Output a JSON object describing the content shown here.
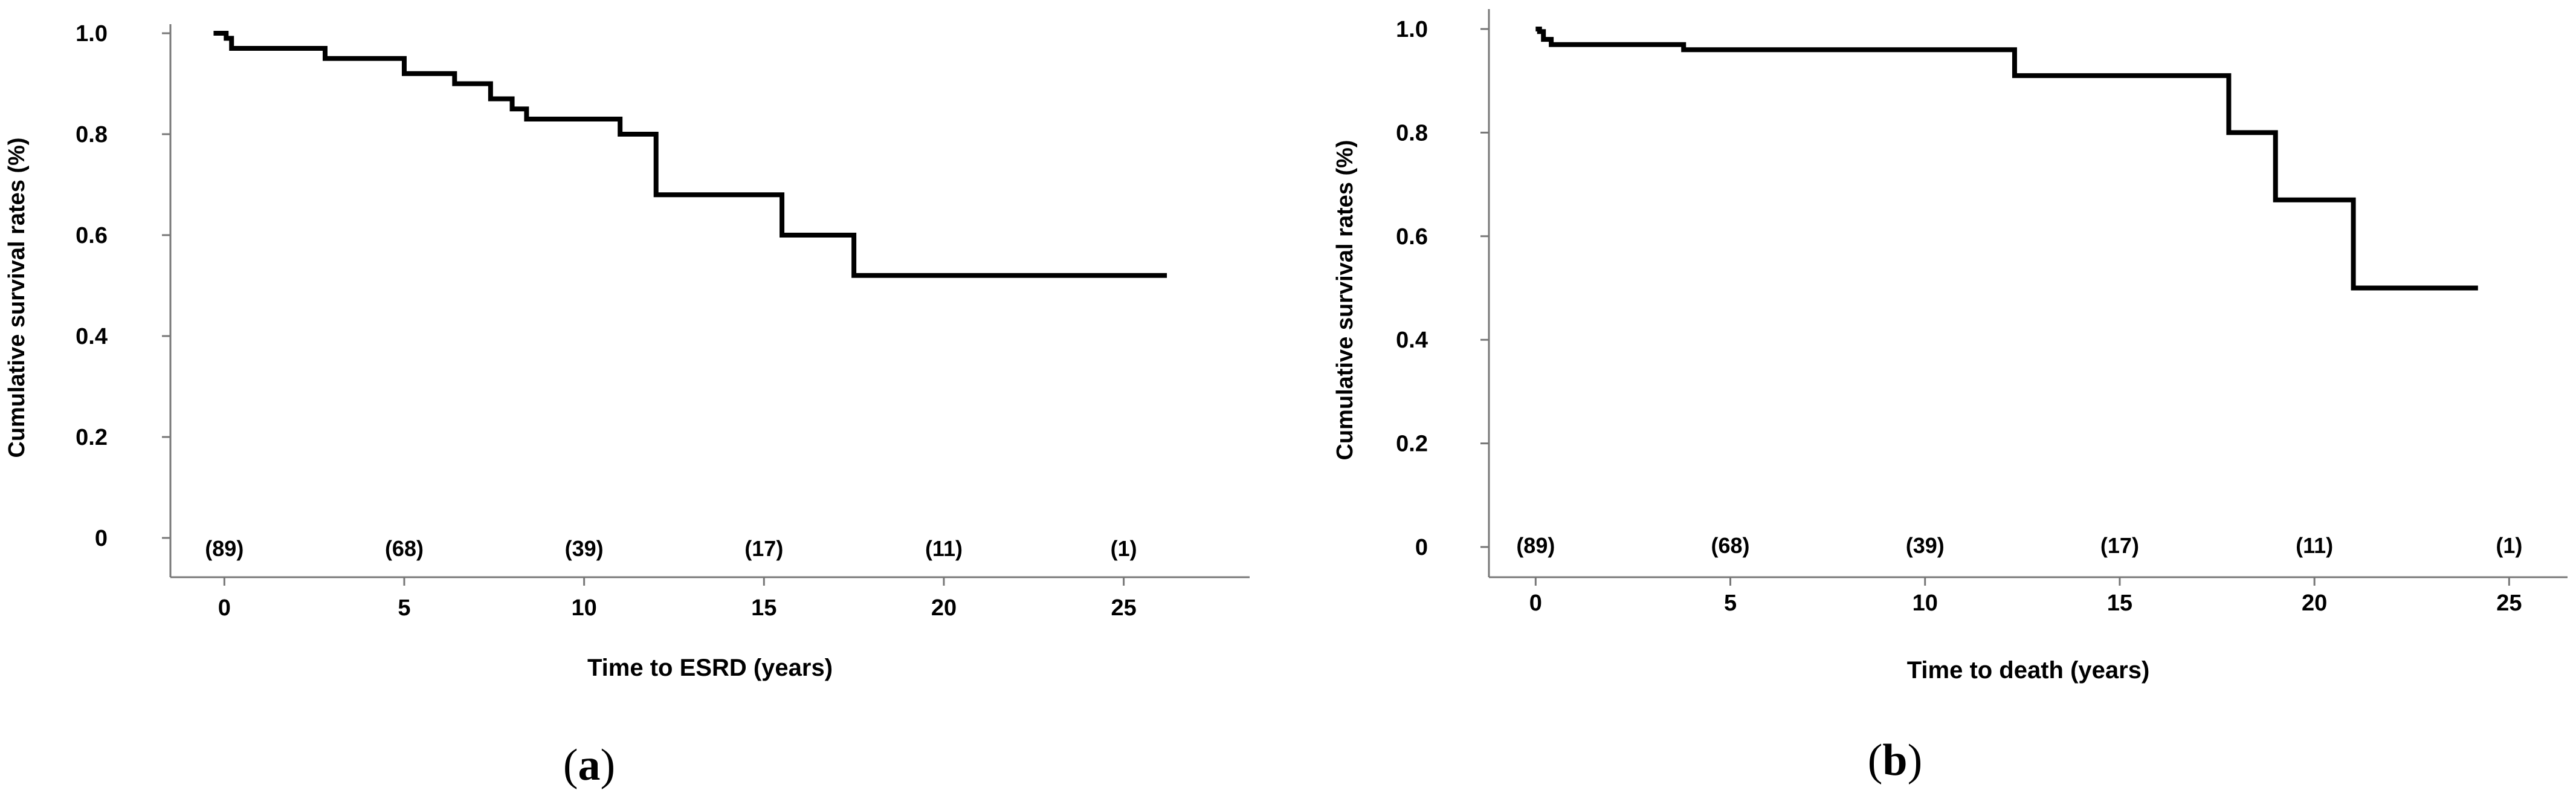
{
  "chart_data": [
    {
      "type": "line",
      "panel_label": "a",
      "xlabel": "Time to ESRD (years)",
      "ylabel": "Cumulative survival rates (%)",
      "xlim": [
        -1.5,
        28.5
      ],
      "ylim": [
        0,
        1.0
      ],
      "x_ticks": [
        0,
        5,
        10,
        15,
        20,
        25
      ],
      "x_tick_labels": [
        "0",
        "5",
        "10",
        "15",
        "20",
        "25"
      ],
      "y_ticks": [
        0,
        0.2,
        0.4,
        0.6,
        0.8,
        1.0
      ],
      "y_tick_labels": [
        "0",
        "0.2",
        "0.4",
        "0.6",
        "0.8",
        "1.0"
      ],
      "number_at_risk": [
        "(89)",
        "(68)",
        "(39)",
        "(17)",
        "(11)",
        "(1)"
      ],
      "grid": false,
      "series": [
        {
          "step": true,
          "x": [
            -0.3,
            0.0,
            0.05,
            0.2,
            2.6,
            2.8,
            4.7,
            5.0,
            6.3,
            6.4,
            7.0,
            7.4,
            8.0,
            8.4,
            9.3,
            9.5,
            11.0,
            11.5,
            12.0,
            12.2,
            13.0,
            15.5,
            17.2,
            17.5,
            20.0,
            23.0,
            26.0,
            26.2
          ],
          "y": [
            1.0,
            1.0,
            0.99,
            0.97,
            0.97,
            0.95,
            0.95,
            0.92,
            0.92,
            0.9,
            0.9,
            0.87,
            0.85,
            0.83,
            0.83,
            0.83,
            0.8,
            0.8,
            0.68,
            0.68,
            0.68,
            0.6,
            0.6,
            0.52,
            0.52,
            0.52,
            0.52,
            0.52
          ]
        }
      ],
      "color": "#000000"
    },
    {
      "type": "line",
      "panel_label": "b",
      "xlabel": "Time to death (years)",
      "ylabel": "Cumulative survival rates (%)",
      "xlim": [
        -1.2,
        26.5
      ],
      "ylim": [
        0,
        1.0
      ],
      "x_ticks": [
        0,
        5,
        10,
        15,
        20,
        25
      ],
      "x_tick_labels": [
        "0",
        "5",
        "10",
        "15",
        "20",
        "25"
      ],
      "y_ticks": [
        0,
        0.2,
        0.4,
        0.6,
        0.8,
        1.0
      ],
      "y_tick_labels": [
        "0",
        "0.2",
        "0.4",
        "0.6",
        "0.8",
        "1.0"
      ],
      "number_at_risk": [
        "(89)",
        "(68)",
        "(39)",
        "(17)",
        "(11)",
        "(1)"
      ],
      "grid": false,
      "series": [
        {
          "step": true,
          "x": [
            0.0,
            0.1,
            0.2,
            0.4,
            3.8,
            12.3,
            17.8,
            19.0,
            21.0,
            24.2
          ],
          "y": [
            1.0,
            0.995,
            0.98,
            0.97,
            0.96,
            0.91,
            0.8,
            0.67,
            0.5,
            0.5
          ]
        }
      ],
      "color": "#000000"
    }
  ],
  "captions": [
    "a",
    "b"
  ]
}
